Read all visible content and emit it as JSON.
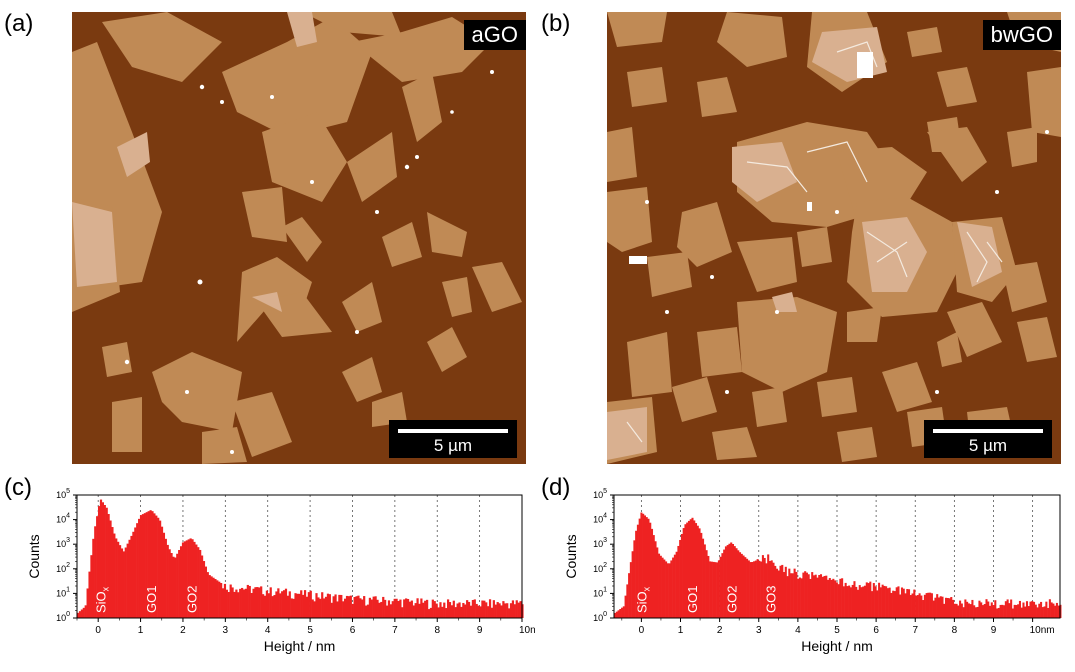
{
  "panels": {
    "a": {
      "label": "(a)",
      "tag": "aGO",
      "scale": "5 µm"
    },
    "b": {
      "label": "(b)",
      "tag": "bwGO",
      "scale": "5 µm"
    },
    "c": {
      "label": "(c)"
    },
    "d": {
      "label": "(d)"
    }
  },
  "colors": {
    "substrate": "#7a3a10",
    "flake": "#c08a55",
    "bilayer": "#d9b090",
    "histogram": "#ee2222"
  },
  "chart_data": [
    {
      "type": "area",
      "panel": "c",
      "xlabel": "Height / nm",
      "ylabel": "Counts",
      "x_ticks": [
        "0",
        "1",
        "2",
        "3",
        "4",
        "5",
        "6",
        "7",
        "8",
        "9",
        "10nm"
      ],
      "y_ticks": [
        "10^0",
        "10^1",
        "10^2",
        "10^3",
        "10^4",
        "10^5"
      ],
      "yscale": "log",
      "xlim": [
        -0.5,
        10
      ],
      "ylim": [
        1,
        100000
      ],
      "grid": "vertical dashed",
      "peaks": [
        {
          "label": "SiOx",
          "x": 0.05,
          "y": 70000
        },
        {
          "label": "GO1",
          "x": 1.25,
          "y": 25000
        },
        {
          "label": "GO2",
          "x": 2.2,
          "y": 1800
        }
      ],
      "profile": [
        [
          -0.5,
          1.5
        ],
        [
          -0.3,
          3
        ],
        [
          -0.2,
          100
        ],
        [
          -0.1,
          3000
        ],
        [
          0.05,
          70000
        ],
        [
          0.2,
          30000
        ],
        [
          0.4,
          2000
        ],
        [
          0.6,
          500
        ],
        [
          0.8,
          2500
        ],
        [
          1.0,
          15000
        ],
        [
          1.25,
          25000
        ],
        [
          1.45,
          10000
        ],
        [
          1.65,
          800
        ],
        [
          1.8,
          250
        ],
        [
          2.0,
          1200
        ],
        [
          2.2,
          1800
        ],
        [
          2.4,
          600
        ],
        [
          2.6,
          60
        ],
        [
          3.0,
          20
        ],
        [
          4.0,
          13
        ],
        [
          5.0,
          9
        ],
        [
          6.0,
          6
        ],
        [
          7.0,
          5
        ],
        [
          8.0,
          4
        ],
        [
          9.0,
          4
        ],
        [
          10.0,
          4
        ]
      ]
    },
    {
      "type": "area",
      "panel": "d",
      "xlabel": "Height / nm",
      "ylabel": "Counts",
      "x_ticks": [
        "0",
        "1",
        "2",
        "3",
        "4",
        "5",
        "6",
        "7",
        "8",
        "9",
        "10nm"
      ],
      "y_ticks": [
        "10^0",
        "10^1",
        "10^2",
        "10^3",
        "10^4",
        "10^5"
      ],
      "yscale": "log",
      "xlim": [
        -0.7,
        10.7
      ],
      "ylim": [
        1,
        100000
      ],
      "grid": "vertical dashed",
      "peaks": [
        {
          "label": "SiOx",
          "x": 0.0,
          "y": 20000
        },
        {
          "label": "GO1",
          "x": 1.3,
          "y": 12000
        },
        {
          "label": "GO2",
          "x": 2.3,
          "y": 1200
        },
        {
          "label": "GO3",
          "x": 3.3,
          "y": 300
        }
      ],
      "profile": [
        [
          -0.7,
          1.5
        ],
        [
          -0.45,
          3
        ],
        [
          -0.3,
          100
        ],
        [
          -0.15,
          3000
        ],
        [
          0.0,
          20000
        ],
        [
          0.2,
          10000
        ],
        [
          0.45,
          400
        ],
        [
          0.7,
          150
        ],
        [
          0.9,
          500
        ],
        [
          1.1,
          6000
        ],
        [
          1.3,
          12000
        ],
        [
          1.5,
          4000
        ],
        [
          1.75,
          200
        ],
        [
          1.95,
          180
        ],
        [
          2.15,
          800
        ],
        [
          2.3,
          1200
        ],
        [
          2.5,
          500
        ],
        [
          2.8,
          180
        ],
        [
          3.1,
          280
        ],
        [
          3.3,
          300
        ],
        [
          3.6,
          100
        ],
        [
          4.0,
          70
        ],
        [
          5.0,
          30
        ],
        [
          6.0,
          20
        ],
        [
          7.0,
          10
        ],
        [
          8.0,
          5
        ],
        [
          9.0,
          4
        ],
        [
          10.7,
          4
        ]
      ]
    }
  ]
}
